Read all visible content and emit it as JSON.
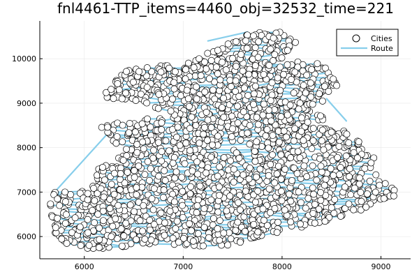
{
  "chart_data": {
    "type": "scatter",
    "title": "fnl4461-TTP_items=4460_obj=32532_time=221",
    "xlabel": "",
    "ylabel": "",
    "xlim": [
      5550,
      9300
    ],
    "ylim": [
      5500,
      10850
    ],
    "xticks": [
      6000,
      7000,
      8000,
      9000
    ],
    "yticks": [
      6000,
      7000,
      8000,
      9000,
      10000
    ],
    "grid": true,
    "legend_position": "top-right",
    "legend": [
      {
        "label": "Cities",
        "marker": "circle"
      },
      {
        "label": "Route",
        "marker": "line"
      }
    ],
    "colors": {
      "route": "#87ceeb",
      "city_fill": "#ffffff",
      "city_edge": "#000000"
    },
    "outline": [
      [
        5650,
        6850
      ],
      [
        5700,
        7000
      ],
      [
        5900,
        7050
      ],
      [
        6050,
        7000
      ],
      [
        6100,
        7300
      ],
      [
        6150,
        7650
      ],
      [
        6300,
        7700
      ],
      [
        6380,
        7950
      ],
      [
        6250,
        8250
      ],
      [
        6150,
        8500
      ],
      [
        6600,
        8650
      ],
      [
        6850,
        8800
      ],
      [
        6600,
        9000
      ],
      [
        6150,
        9150
      ],
      [
        6300,
        9450
      ],
      [
        6150,
        9650
      ],
      [
        6800,
        9850
      ],
      [
        7100,
        9950
      ],
      [
        7300,
        10200
      ],
      [
        7600,
        10550
      ],
      [
        7950,
        10650
      ],
      [
        8150,
        10400
      ],
      [
        8050,
        10000
      ],
      [
        8400,
        9900
      ],
      [
        8600,
        9400
      ],
      [
        8450,
        9100
      ],
      [
        8300,
        8900
      ],
      [
        8500,
        8500
      ],
      [
        8700,
        8300
      ],
      [
        8950,
        7800
      ],
      [
        8950,
        7400
      ],
      [
        9150,
        7100
      ],
      [
        9150,
        6900
      ],
      [
        8950,
        6750
      ],
      [
        8700,
        6500
      ],
      [
        8550,
        6400
      ],
      [
        8200,
        6200
      ],
      [
        7900,
        6050
      ],
      [
        7700,
        5950
      ],
      [
        7500,
        5800
      ],
      [
        7350,
        5750
      ],
      [
        6900,
        5800
      ],
      [
        6700,
        5850
      ],
      [
        6550,
        5800
      ],
      [
        6150,
        5700
      ],
      [
        5800,
        5800
      ],
      [
        5700,
        6100
      ],
      [
        5650,
        6500
      ]
    ],
    "route_jumps": [
      [
        [
          5700,
          7000
        ],
        [
          6250,
          8350
        ]
      ],
      [
        [
          7650,
          10600
        ],
        [
          7250,
          10400
        ]
      ],
      [
        [
          8450,
          9100
        ],
        [
          8650,
          8600
        ]
      ]
    ]
  }
}
